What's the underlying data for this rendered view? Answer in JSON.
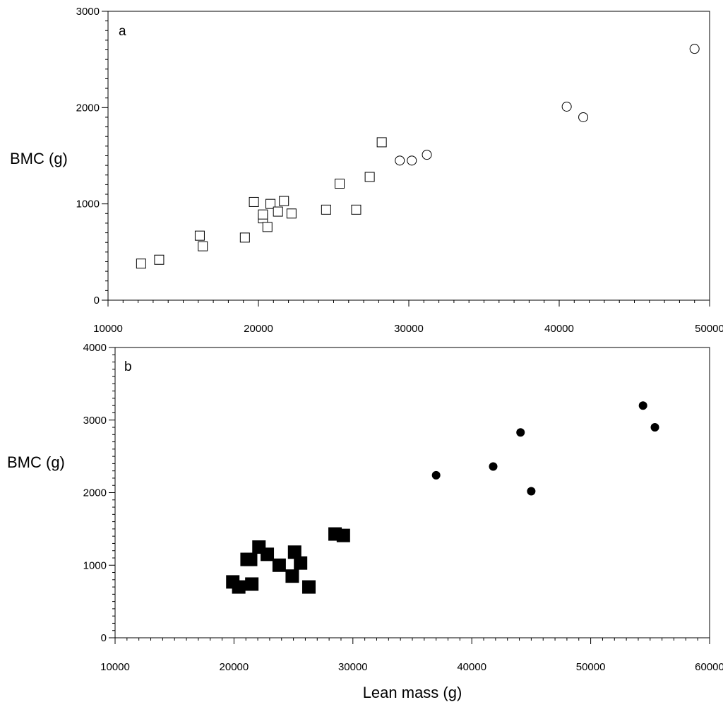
{
  "chart_data": [
    {
      "type": "scatter",
      "panel_label": "a",
      "xlabel": "",
      "ylabel": "BMC (g)",
      "xlim": [
        10000,
        50000
      ],
      "ylim": [
        0,
        3000
      ],
      "x_ticks": [
        "10000",
        "20000",
        "30000",
        "40000",
        "50000"
      ],
      "y_ticks": [
        "0",
        "1000",
        "2000",
        "3000"
      ],
      "series": [
        {
          "marker": "open-square",
          "points": [
            [
              12200,
              380
            ],
            [
              13400,
              420
            ],
            [
              16100,
              670
            ],
            [
              16300,
              560
            ],
            [
              19100,
              650
            ],
            [
              19700,
              1020
            ],
            [
              20300,
              850
            ],
            [
              20300,
              890
            ],
            [
              20600,
              760
            ],
            [
              20800,
              1000
            ],
            [
              21300,
              920
            ],
            [
              21700,
              1030
            ],
            [
              22200,
              900
            ],
            [
              24500,
              940
            ],
            [
              25400,
              1210
            ],
            [
              26500,
              940
            ],
            [
              27400,
              1280
            ],
            [
              28200,
              1640
            ]
          ]
        },
        {
          "marker": "open-circle",
          "points": [
            [
              29400,
              1450
            ],
            [
              30200,
              1450
            ],
            [
              31200,
              1510
            ],
            [
              40500,
              2010
            ],
            [
              41600,
              1900
            ],
            [
              49000,
              2610
            ]
          ]
        }
      ]
    },
    {
      "type": "scatter",
      "panel_label": "b",
      "xlabel": "Lean mass (g)",
      "ylabel": "BMC (g)",
      "xlim": [
        10000,
        60000
      ],
      "ylim": [
        0,
        4000
      ],
      "x_ticks": [
        "10000",
        "20000",
        "30000",
        "40000",
        "50000",
        "60000"
      ],
      "y_ticks": [
        "0",
        "1000",
        "2000",
        "3000",
        "4000"
      ],
      "series": [
        {
          "marker": "filled-square",
          "points": [
            [
              19900,
              770
            ],
            [
              20400,
              700
            ],
            [
              21100,
              1080
            ],
            [
              21400,
              1080
            ],
            [
              21500,
              740
            ],
            [
              22100,
              1250
            ],
            [
              22800,
              1150
            ],
            [
              23800,
              1000
            ],
            [
              24900,
              850
            ],
            [
              25100,
              1180
            ],
            [
              25600,
              1030
            ],
            [
              26300,
              700
            ],
            [
              28500,
              1430
            ],
            [
              29200,
              1410
            ]
          ]
        },
        {
          "marker": "filled-circle",
          "points": [
            [
              37000,
              2240
            ],
            [
              41800,
              2360
            ],
            [
              44100,
              2830
            ],
            [
              45000,
              2020
            ],
            [
              54400,
              3200
            ],
            [
              55400,
              2900
            ]
          ]
        }
      ]
    }
  ]
}
